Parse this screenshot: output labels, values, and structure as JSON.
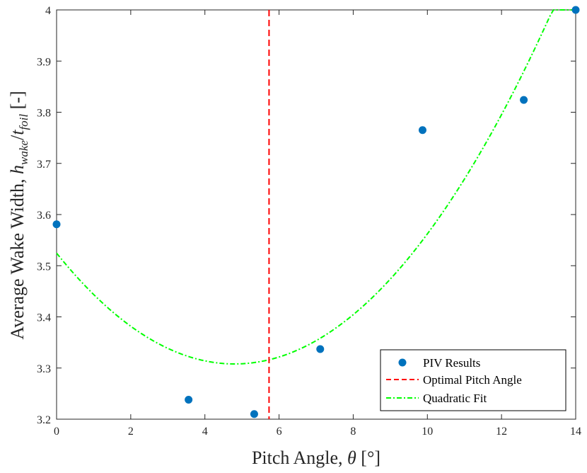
{
  "chart_data": {
    "type": "scatter",
    "x_label": {
      "prefix": "Pitch Angle, ",
      "symbol": "θ",
      "unit_open": " [",
      "unit": "°",
      "unit_close": "]"
    },
    "y_label": {
      "prefix": "Average Wake Width, ",
      "h": "h",
      "h_sub": "wake",
      "slash": "/",
      "t": "t",
      "t_sub": "foil",
      "unit": " [-]"
    },
    "xlim": [
      0,
      14
    ],
    "ylim": [
      3.2,
      4.0
    ],
    "x_ticks": [
      0,
      2,
      4,
      6,
      8,
      10,
      12,
      14
    ],
    "y_ticks": [
      3.2,
      3.3,
      3.4,
      3.5,
      3.6,
      3.7,
      3.8,
      3.9,
      4.0
    ],
    "y_tick_labels": [
      "3.2",
      "3.3",
      "3.4",
      "3.5",
      "3.6",
      "3.7",
      "3.8",
      "3.9",
      "4"
    ],
    "grid": false,
    "legend_position": "bottom-right",
    "series": [
      {
        "name": "PIV Results",
        "kind": "scatter",
        "color": "#0072BD",
        "x": [
          0,
          3.56,
          5.33,
          7.11,
          9.87,
          12.6,
          14.0
        ],
        "y": [
          3.581,
          3.238,
          3.21,
          3.337,
          3.765,
          3.824,
          4.0
        ]
      },
      {
        "name": "Optimal Pitch Angle",
        "kind": "vline",
        "color": "#FF0000",
        "x": 5.73
      },
      {
        "name": "Quadratic Fit",
        "kind": "quadratic",
        "color": "#00FF00",
        "vertex_x": 4.8,
        "vertex_y": 3.308,
        "coef_a": 0.0094,
        "x_range": [
          0,
          14
        ]
      }
    ]
  }
}
